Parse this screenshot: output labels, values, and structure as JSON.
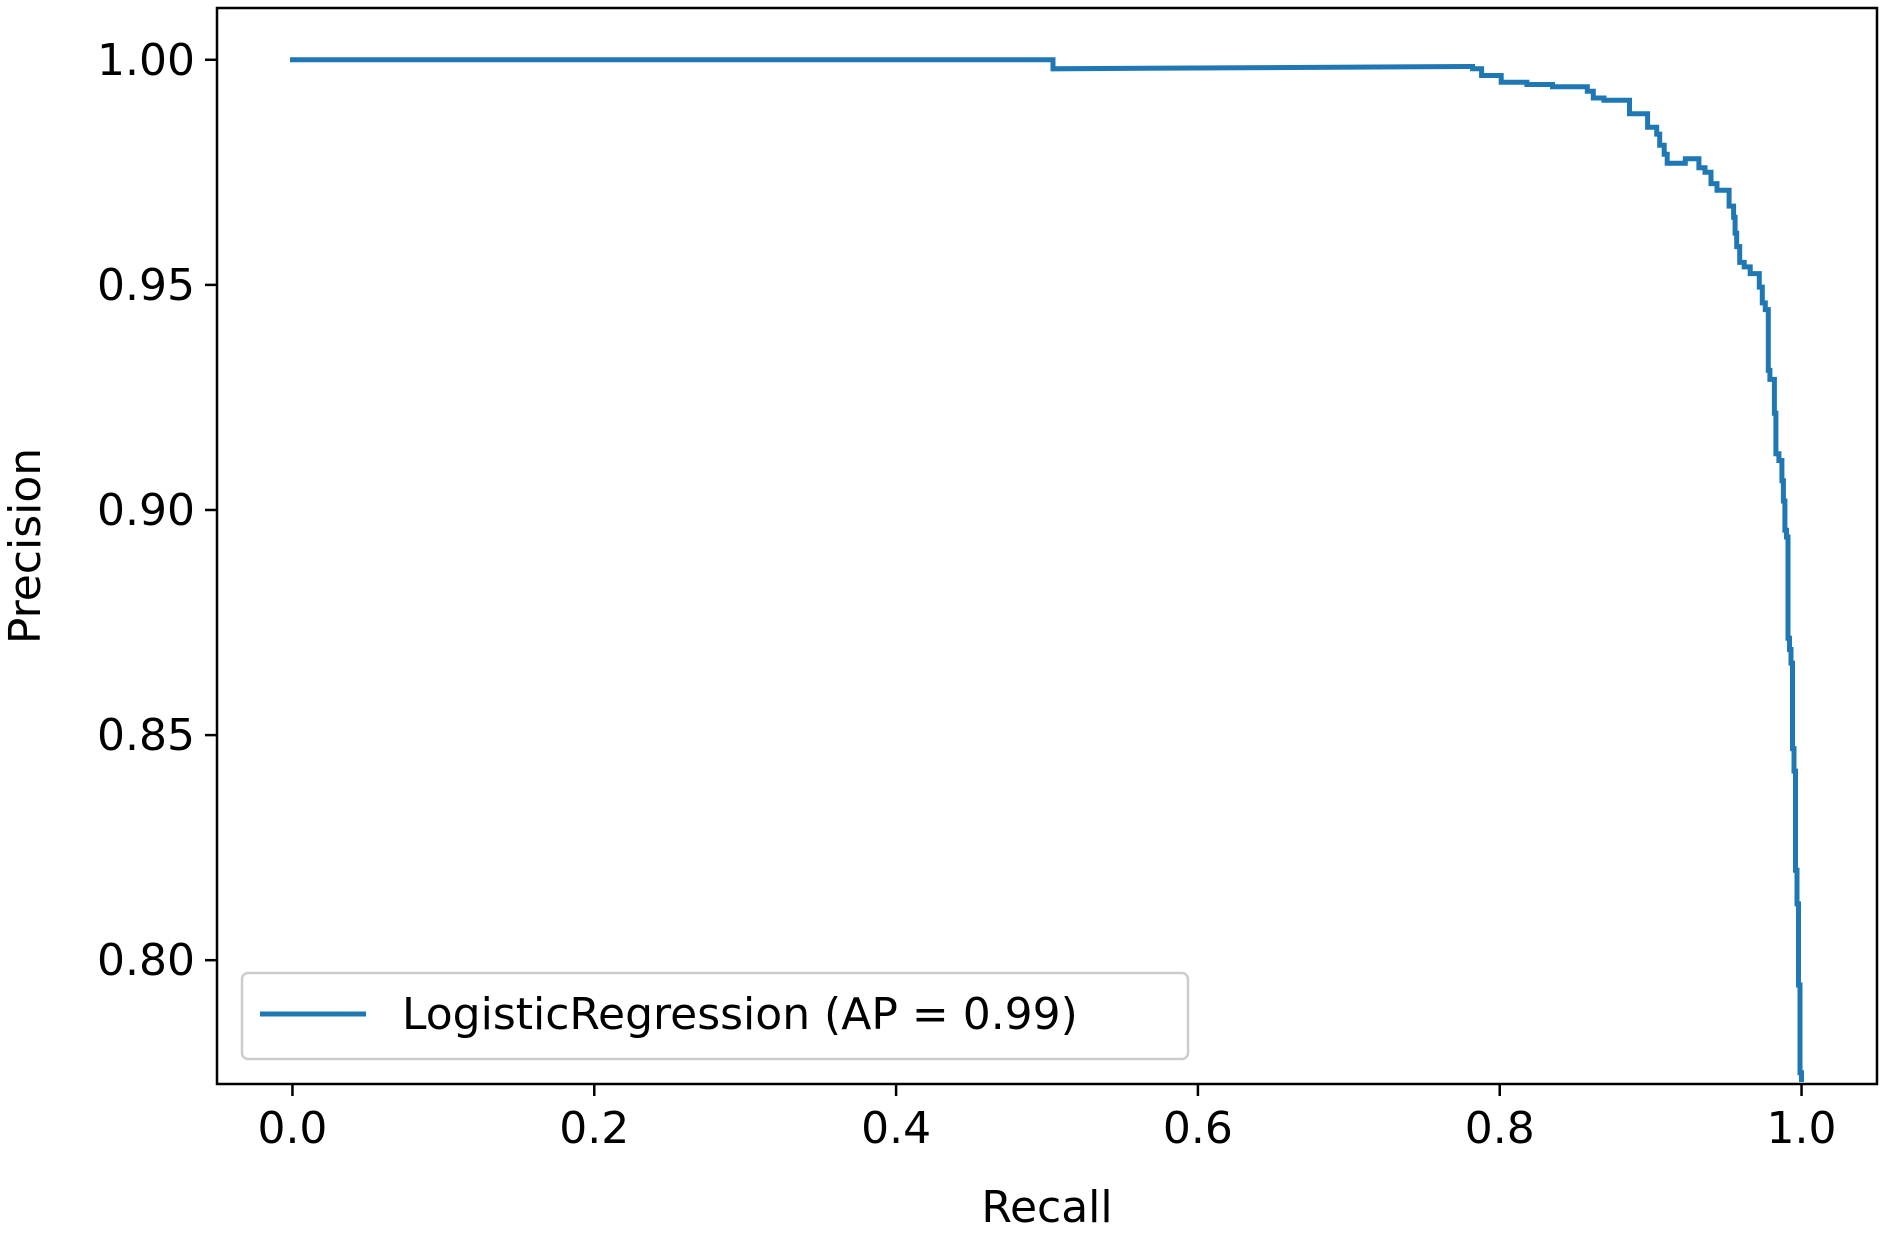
{
  "chart_data": {
    "type": "line",
    "title": "",
    "xlabel": "Recall",
    "ylabel": "Precision",
    "xlim": [
      -0.05,
      1.05
    ],
    "ylim": [
      0.7725,
      1.0115
    ],
    "x_ticks": [
      0.0,
      0.2,
      0.4,
      0.6,
      0.8,
      1.0
    ],
    "x_tick_labels": [
      "0.0",
      "0.2",
      "0.4",
      "0.6",
      "0.8",
      "1.0"
    ],
    "y_ticks": [
      0.8,
      0.85,
      0.9,
      0.95,
      1.0
    ],
    "y_tick_labels": [
      "0.80",
      "0.85",
      "0.90",
      "0.95",
      "1.00"
    ],
    "grid": false,
    "legend": {
      "position": "lower-left",
      "entries": [
        "LogisticRegression (AP = 0.99)"
      ]
    },
    "series": [
      {
        "name": "LogisticRegression (AP = 0.99)",
        "color": "#1f77b4",
        "step": true,
        "points": [
          [
            1.0,
            0.7735
          ],
          [
            1.0,
            0.775
          ],
          [
            0.999,
            0.775
          ],
          [
            0.999,
            0.7945
          ],
          [
            0.998,
            0.7945
          ],
          [
            0.998,
            0.8125
          ],
          [
            0.997,
            0.8125
          ],
          [
            0.997,
            0.82
          ],
          [
            0.996,
            0.82
          ],
          [
            0.996,
            0.842
          ],
          [
            0.995,
            0.842
          ],
          [
            0.995,
            0.847
          ],
          [
            0.994,
            0.847
          ],
          [
            0.994,
            0.866
          ],
          [
            0.993,
            0.866
          ],
          [
            0.993,
            0.869
          ],
          [
            0.992,
            0.869
          ],
          [
            0.992,
            0.8715
          ],
          [
            0.991,
            0.8715
          ],
          [
            0.991,
            0.894
          ],
          [
            0.99,
            0.894
          ],
          [
            0.99,
            0.8955
          ],
          [
            0.989,
            0.8955
          ],
          [
            0.989,
            0.902
          ],
          [
            0.988,
            0.902
          ],
          [
            0.988,
            0.9065
          ],
          [
            0.987,
            0.9065
          ],
          [
            0.987,
            0.911
          ],
          [
            0.985,
            0.911
          ],
          [
            0.985,
            0.9125
          ],
          [
            0.983,
            0.9125
          ],
          [
            0.983,
            0.9215
          ],
          [
            0.982,
            0.9215
          ],
          [
            0.982,
            0.929
          ],
          [
            0.979,
            0.929
          ],
          [
            0.979,
            0.931
          ],
          [
            0.978,
            0.931
          ],
          [
            0.978,
            0.9445
          ],
          [
            0.976,
            0.9445
          ],
          [
            0.976,
            0.946
          ],
          [
            0.974,
            0.946
          ],
          [
            0.974,
            0.9495
          ],
          [
            0.972,
            0.9495
          ],
          [
            0.972,
            0.9525
          ],
          [
            0.966,
            0.9525
          ],
          [
            0.966,
            0.954
          ],
          [
            0.962,
            0.954
          ],
          [
            0.962,
            0.955
          ],
          [
            0.959,
            0.955
          ],
          [
            0.959,
            0.9585
          ],
          [
            0.957,
            0.9585
          ],
          [
            0.957,
            0.9615
          ],
          [
            0.956,
            0.9615
          ],
          [
            0.956,
            0.965
          ],
          [
            0.955,
            0.965
          ],
          [
            0.955,
            0.9675
          ],
          [
            0.952,
            0.9675
          ],
          [
            0.952,
            0.971
          ],
          [
            0.944,
            0.971
          ],
          [
            0.944,
            0.9725
          ],
          [
            0.94,
            0.9725
          ],
          [
            0.94,
            0.975
          ],
          [
            0.936,
            0.975
          ],
          [
            0.936,
            0.976
          ],
          [
            0.932,
            0.976
          ],
          [
            0.932,
            0.978
          ],
          [
            0.923,
            0.978
          ],
          [
            0.923,
            0.977
          ],
          [
            0.911,
            0.977
          ],
          [
            0.911,
            0.979
          ],
          [
            0.909,
            0.979
          ],
          [
            0.909,
            0.981
          ],
          [
            0.906,
            0.981
          ],
          [
            0.906,
            0.9835
          ],
          [
            0.904,
            0.9835
          ],
          [
            0.904,
            0.985
          ],
          [
            0.898,
            0.985
          ],
          [
            0.898,
            0.988
          ],
          [
            0.886,
            0.988
          ],
          [
            0.886,
            0.991
          ],
          [
            0.869,
            0.991
          ],
          [
            0.869,
            0.9915
          ],
          [
            0.862,
            0.9915
          ],
          [
            0.862,
            0.993
          ],
          [
            0.858,
            0.993
          ],
          [
            0.858,
            0.994
          ],
          [
            0.835,
            0.994
          ],
          [
            0.835,
            0.9945
          ],
          [
            0.818,
            0.9945
          ],
          [
            0.818,
            0.995
          ],
          [
            0.801,
            0.995
          ],
          [
            0.801,
            0.9965
          ],
          [
            0.788,
            0.9965
          ],
          [
            0.788,
            0.998
          ],
          [
            0.782,
            0.998
          ],
          [
            0.782,
            0.9985
          ],
          [
            0.78,
            0.9985
          ],
          [
            0.504,
            0.998
          ],
          [
            0.504,
            1.0
          ],
          [
            0.0,
            1.0
          ]
        ]
      }
    ]
  }
}
